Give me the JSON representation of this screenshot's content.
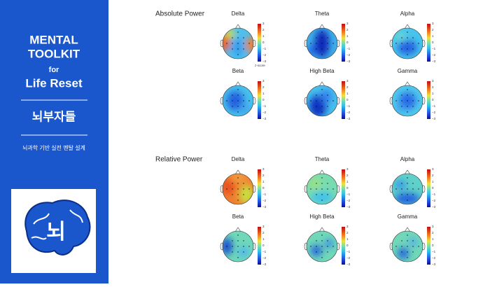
{
  "sidebar": {
    "title_lines": [
      "MENTAL",
      "TOOLKIT"
    ],
    "for": "for",
    "subtitle": "Life Reset",
    "brand": "뇌부자들",
    "tagline": "뇌과학 기반 실전 멘탈 설계",
    "logo_text": "뇌"
  },
  "colorbar": {
    "ticks": [
      "3",
      "2",
      "1",
      "0",
      "−1",
      "−2",
      "−3"
    ],
    "label": "z-score"
  },
  "sections": [
    {
      "title": "Absolute Power",
      "maps": [
        {
          "label": "Delta"
        },
        {
          "label": "Theta"
        },
        {
          "label": "Alpha"
        },
        {
          "label": "Beta"
        },
        {
          "label": "High Beta"
        },
        {
          "label": "Gamma"
        }
      ]
    },
    {
      "title": "Relative Power",
      "maps": [
        {
          "label": "Delta"
        },
        {
          "label": "Theta"
        },
        {
          "label": "Alpha"
        },
        {
          "label": "Beta"
        },
        {
          "label": "High Beta"
        },
        {
          "label": "Gamma"
        }
      ]
    }
  ]
}
